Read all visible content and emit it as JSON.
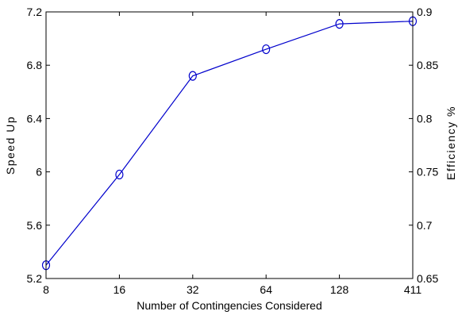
{
  "chart_data": {
    "type": "line",
    "title": "",
    "xlabel": "Number of Contingencies Considered",
    "ylabel": "Speed Up",
    "y2label": "Efficiency  %",
    "categories": [
      "8",
      "16",
      "32",
      "64",
      "128",
      "411"
    ],
    "series": [
      {
        "values": [
          5.3,
          5.98,
          6.72,
          6.92,
          7.11,
          7.13
        ],
        "color": "#0000cc",
        "marker": "circle"
      }
    ],
    "ylim": [
      5.2,
      7.2
    ],
    "yticks": [
      "5.2",
      "5.6",
      "6",
      "6.4",
      "6.8",
      "7.2"
    ],
    "y2lim": [
      0.65,
      0.9
    ],
    "y2ticks": [
      "0.65",
      "0.7",
      "0.75",
      "0.8",
      "0.85",
      "0.9"
    ],
    "grid": false,
    "legend": "none"
  }
}
